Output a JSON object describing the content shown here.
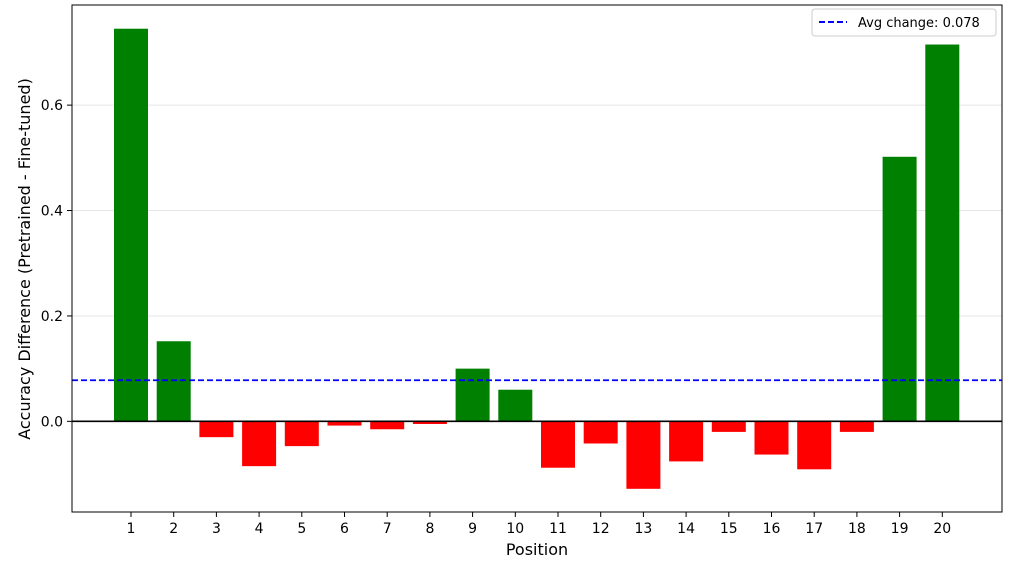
{
  "chart_data": {
    "type": "bar",
    "categories": [
      "1",
      "2",
      "3",
      "4",
      "5",
      "6",
      "7",
      "8",
      "9",
      "10",
      "11",
      "12",
      "13",
      "14",
      "15",
      "16",
      "17",
      "18",
      "19",
      "20"
    ],
    "values": [
      0.745,
      0.152,
      -0.03,
      -0.085,
      -0.047,
      -0.008,
      -0.015,
      -0.005,
      0.1,
      0.06,
      -0.088,
      -0.042,
      -0.128,
      -0.076,
      -0.02,
      -0.063,
      -0.091,
      -0.02,
      0.502,
      0.715
    ],
    "xlabel": "Position",
    "ylabel": "Accuracy Difference (Pretrained - Fine-tuned)",
    "ylim": [
      -0.172,
      0.79
    ],
    "yticks": [
      0.0,
      0.2,
      0.4,
      0.6
    ],
    "ytick_labels": [
      "0.0",
      "0.2",
      "0.4",
      "0.6"
    ],
    "positive_color": "#008000",
    "negative_color": "#ff0000",
    "zero_line_color": "#000000",
    "avg_line": {
      "value": 0.078,
      "color": "#0000ff",
      "style": "dashed"
    },
    "legend": {
      "position": "top-right",
      "label": "Avg change: 0.078"
    },
    "grid": {
      "y": true,
      "x": false
    }
  }
}
